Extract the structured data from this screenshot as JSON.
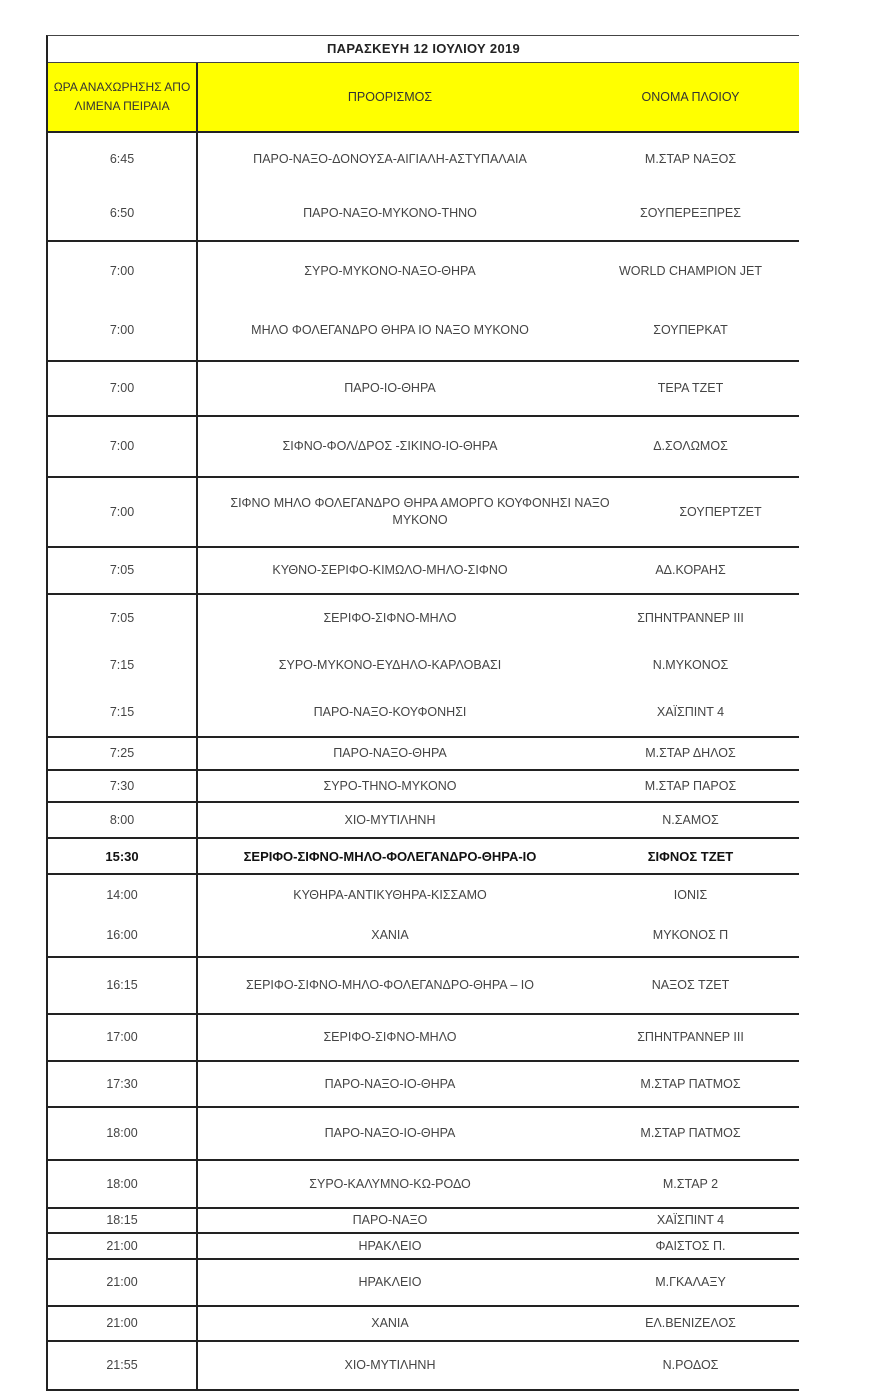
{
  "title": "ΠΑΡΑΣΚΕΥΗ 12 ΙΟΥΛΙΟΥ  2019",
  "header": {
    "time": "ΩΡΑ ΑΝΑΧΩΡΗΣΗΣ ΑΠΟ ΛΙΜΕΝΑ ΠΕΙΡΑΙΑ",
    "destination": "ΠΡΟΟΡΙΣΜΟΣ",
    "ship": "ΟΝΟΜΑ ΠΛΟΙΟΥ"
  },
  "header_color": "#ffff00",
  "groups": [
    [
      [
        "6:45",
        "ΠΑΡΟ-ΝΑΞΟ-ΔΟΝΟΥΣΑ-ΑΙΓΙΑΛΗ-ΑΣΤΥΠΑΛΑΙΑ",
        "Μ.ΣΤΑΡ ΝΑΞΟΣ"
      ],
      [
        "6:50",
        "ΠΑΡΟ-ΝΑΞΟ-ΜΥΚΟΝΟ-ΤΗΝΟ",
        "ΣΟΥΠΕΡΕΞΠΡΕΣ"
      ]
    ],
    [
      [
        "7:00",
        "ΣΥΡΟ-ΜΥΚΟΝΟ-ΝΑΞΟ-ΘΗΡΑ",
        "WORLD CHAMPION JET"
      ],
      [
        "7:00",
        "ΜΗΛΟ ΦΟΛΕΓΑΝΔΡΟ ΘΗΡΑ ΙΟ ΝΑΞΟ ΜΥΚΟΝΟ",
        "ΣΟΥΠΕΡΚΑΤ"
      ]
    ],
    [
      [
        "7:00",
        "ΠΑΡΟ-ΙΟ-ΘΗΡΑ",
        "ΤΕΡΑ ΤΖΕΤ"
      ]
    ],
    [
      [
        "7:00",
        "ΣΙΦΝΟ-ΦΟΛ/ΔΡΟΣ -ΣΙΚΙΝΟ-ΙΟ-ΘΗΡΑ",
        "Δ.ΣΟΛΩΜΟΣ"
      ]
    ],
    [
      [
        "7:00",
        "ΣΙΦΝΟ ΜΗΛΟ ΦΟΛΕΓΑΝΔΡΟ ΘΗΡΑ ΑΜΟΡΓΟ ΚΟΥΦΟΝΗΣΙ ΝΑΞΟ ΜΥΚΟΝΟ",
        "ΣΟΥΠΕΡΤΖΕΤ"
      ]
    ],
    [
      [
        "7:05",
        "ΚΥΘΝΟ-ΣΕΡΙΦΟ-ΚΙΜΩΛΟ-ΜΗΛΟ-ΣΙΦΝΟ",
        "ΑΔ.ΚΟΡΑΗΣ"
      ]
    ],
    [
      [
        "7:05",
        "ΣΕΡΙΦΟ-ΣΙΦΝΟ-ΜΗΛΟ",
        "ΣΠΗΝΤΡΑΝΝΕΡ ΙΙΙ"
      ],
      [
        "7:15",
        "ΣΥΡΟ-ΜΥΚΟΝΟ-ΕΥΔΗΛΟ-ΚΑΡΛΟΒΑΣΙ",
        "Ν.ΜΥΚΟΝΟΣ"
      ],
      [
        "7:15",
        "ΠΑΡΟ-ΝΑΞΟ-ΚΟΥΦΟΝΗΣΙ",
        "ΧΑΪΣΠΙΝΤ 4"
      ]
    ],
    [
      [
        "7:25",
        "ΠΑΡΟ-ΝΑΞΟ-ΘΗΡΑ",
        "Μ.ΣΤΑΡ ΔΗΛΟΣ"
      ]
    ],
    [
      [
        "7:30",
        "ΣΥΡΟ-ΤΗΝΟ-ΜΥΚΟΝΟ",
        "Μ.ΣΤΑΡ ΠΑΡΟΣ"
      ]
    ],
    [
      [
        "8:00",
        "ΧΙΟ-ΜΥΤΙΛΗΝΗ",
        "Ν.ΣΑΜΟΣ"
      ]
    ],
    [
      [
        "15:30",
        "ΣΕΡΙΦΟ-ΣΙΦΝΟ-ΜΗΛΟ-ΦΟΛΕΓΑΝΔΡΟ-ΘΗΡΑ-ΙΟ",
        "ΣΙΦΝΟΣ ΤΖΕΤ"
      ]
    ],
    [
      [
        "14:00",
        "ΚΥΘΗΡΑ-ΑΝΤΙΚΥΘΗΡΑ-ΚΙΣΣΑΜΟ",
        "ΙΟΝΙΣ"
      ],
      [
        "16:00",
        "ΧΑΝΙΑ",
        "ΜΥΚΟΝΟΣ Π"
      ]
    ],
    [
      [
        "16:15",
        "ΣΕΡΙΦΟ-ΣΙΦΝΟ-ΜΗΛΟ-ΦΟΛΕΓΑΝΔΡΟ-ΘΗΡΑ – ΙΟ",
        "ΝΑΞΟΣ ΤΖΕΤ"
      ]
    ],
    [
      [
        "17:00",
        "ΣΕΡΙΦΟ-ΣΙΦΝΟ-ΜΗΛΟ",
        "ΣΠΗΝΤΡΑΝΝΕΡ ΙΙΙ"
      ]
    ],
    [
      [
        "17:30",
        "ΠΑΡΟ-ΝΑΞΟ-ΙΟ-ΘΗΡΑ",
        "Μ.ΣΤΑΡ ΠΑΤΜΟΣ"
      ]
    ],
    [
      [
        "18:00",
        "ΠΑΡΟ-ΝΑΞΟ-ΙΟ-ΘΗΡΑ",
        "Μ.ΣΤΑΡ ΠΑΤΜΟΣ"
      ]
    ],
    [
      [
        "18:00",
        "ΣΥΡΟ-ΚΑΛΥΜΝΟ-ΚΩ-ΡΟΔΟ",
        "Μ.ΣΤΑΡ 2"
      ]
    ],
    [
      [
        "18:15",
        "ΠΑΡΟ-ΝΑΞΟ",
        "ΧΑΪΣΠΙΝΤ 4"
      ]
    ],
    [
      [
        "21:00",
        "ΗΡΑΚΛΕΙΟ",
        "ΦΑΙΣΤΟΣ Π."
      ]
    ],
    [
      [
        "21:00",
        "ΗΡΑΚΛΕΙΟ",
        "Μ.ΓΚΑΛΑΞΥ"
      ]
    ],
    [
      [
        "21:00",
        "ΧΑΝΙΑ",
        "ΕΛ.ΒΕΝΙΖΕΛΟΣ"
      ]
    ],
    [
      [
        "21:55",
        "ΧΙΟ-ΜΥΤΙΛΗΝΗ",
        "Ν.ΡΟΔΟΣ"
      ]
    ]
  ],
  "bold_times": [
    "15:30"
  ]
}
